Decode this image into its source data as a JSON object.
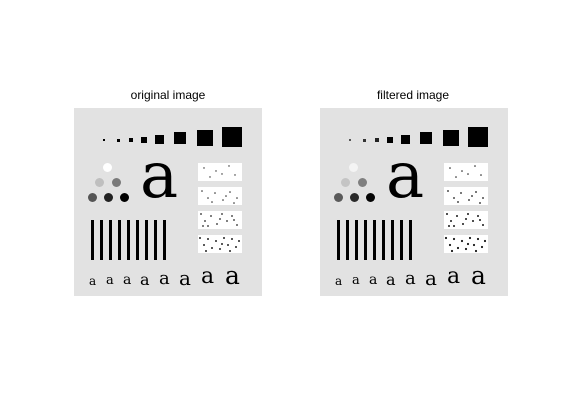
{
  "panels": {
    "left": {
      "title": "original image"
    },
    "right": {
      "title": "filtered image"
    }
  },
  "glyphs": {
    "big_letter": "a",
    "small_letter": "a"
  },
  "colors": {
    "background": "#ffffff",
    "image_background": "#e2e2e2",
    "ink": "#000000"
  }
}
